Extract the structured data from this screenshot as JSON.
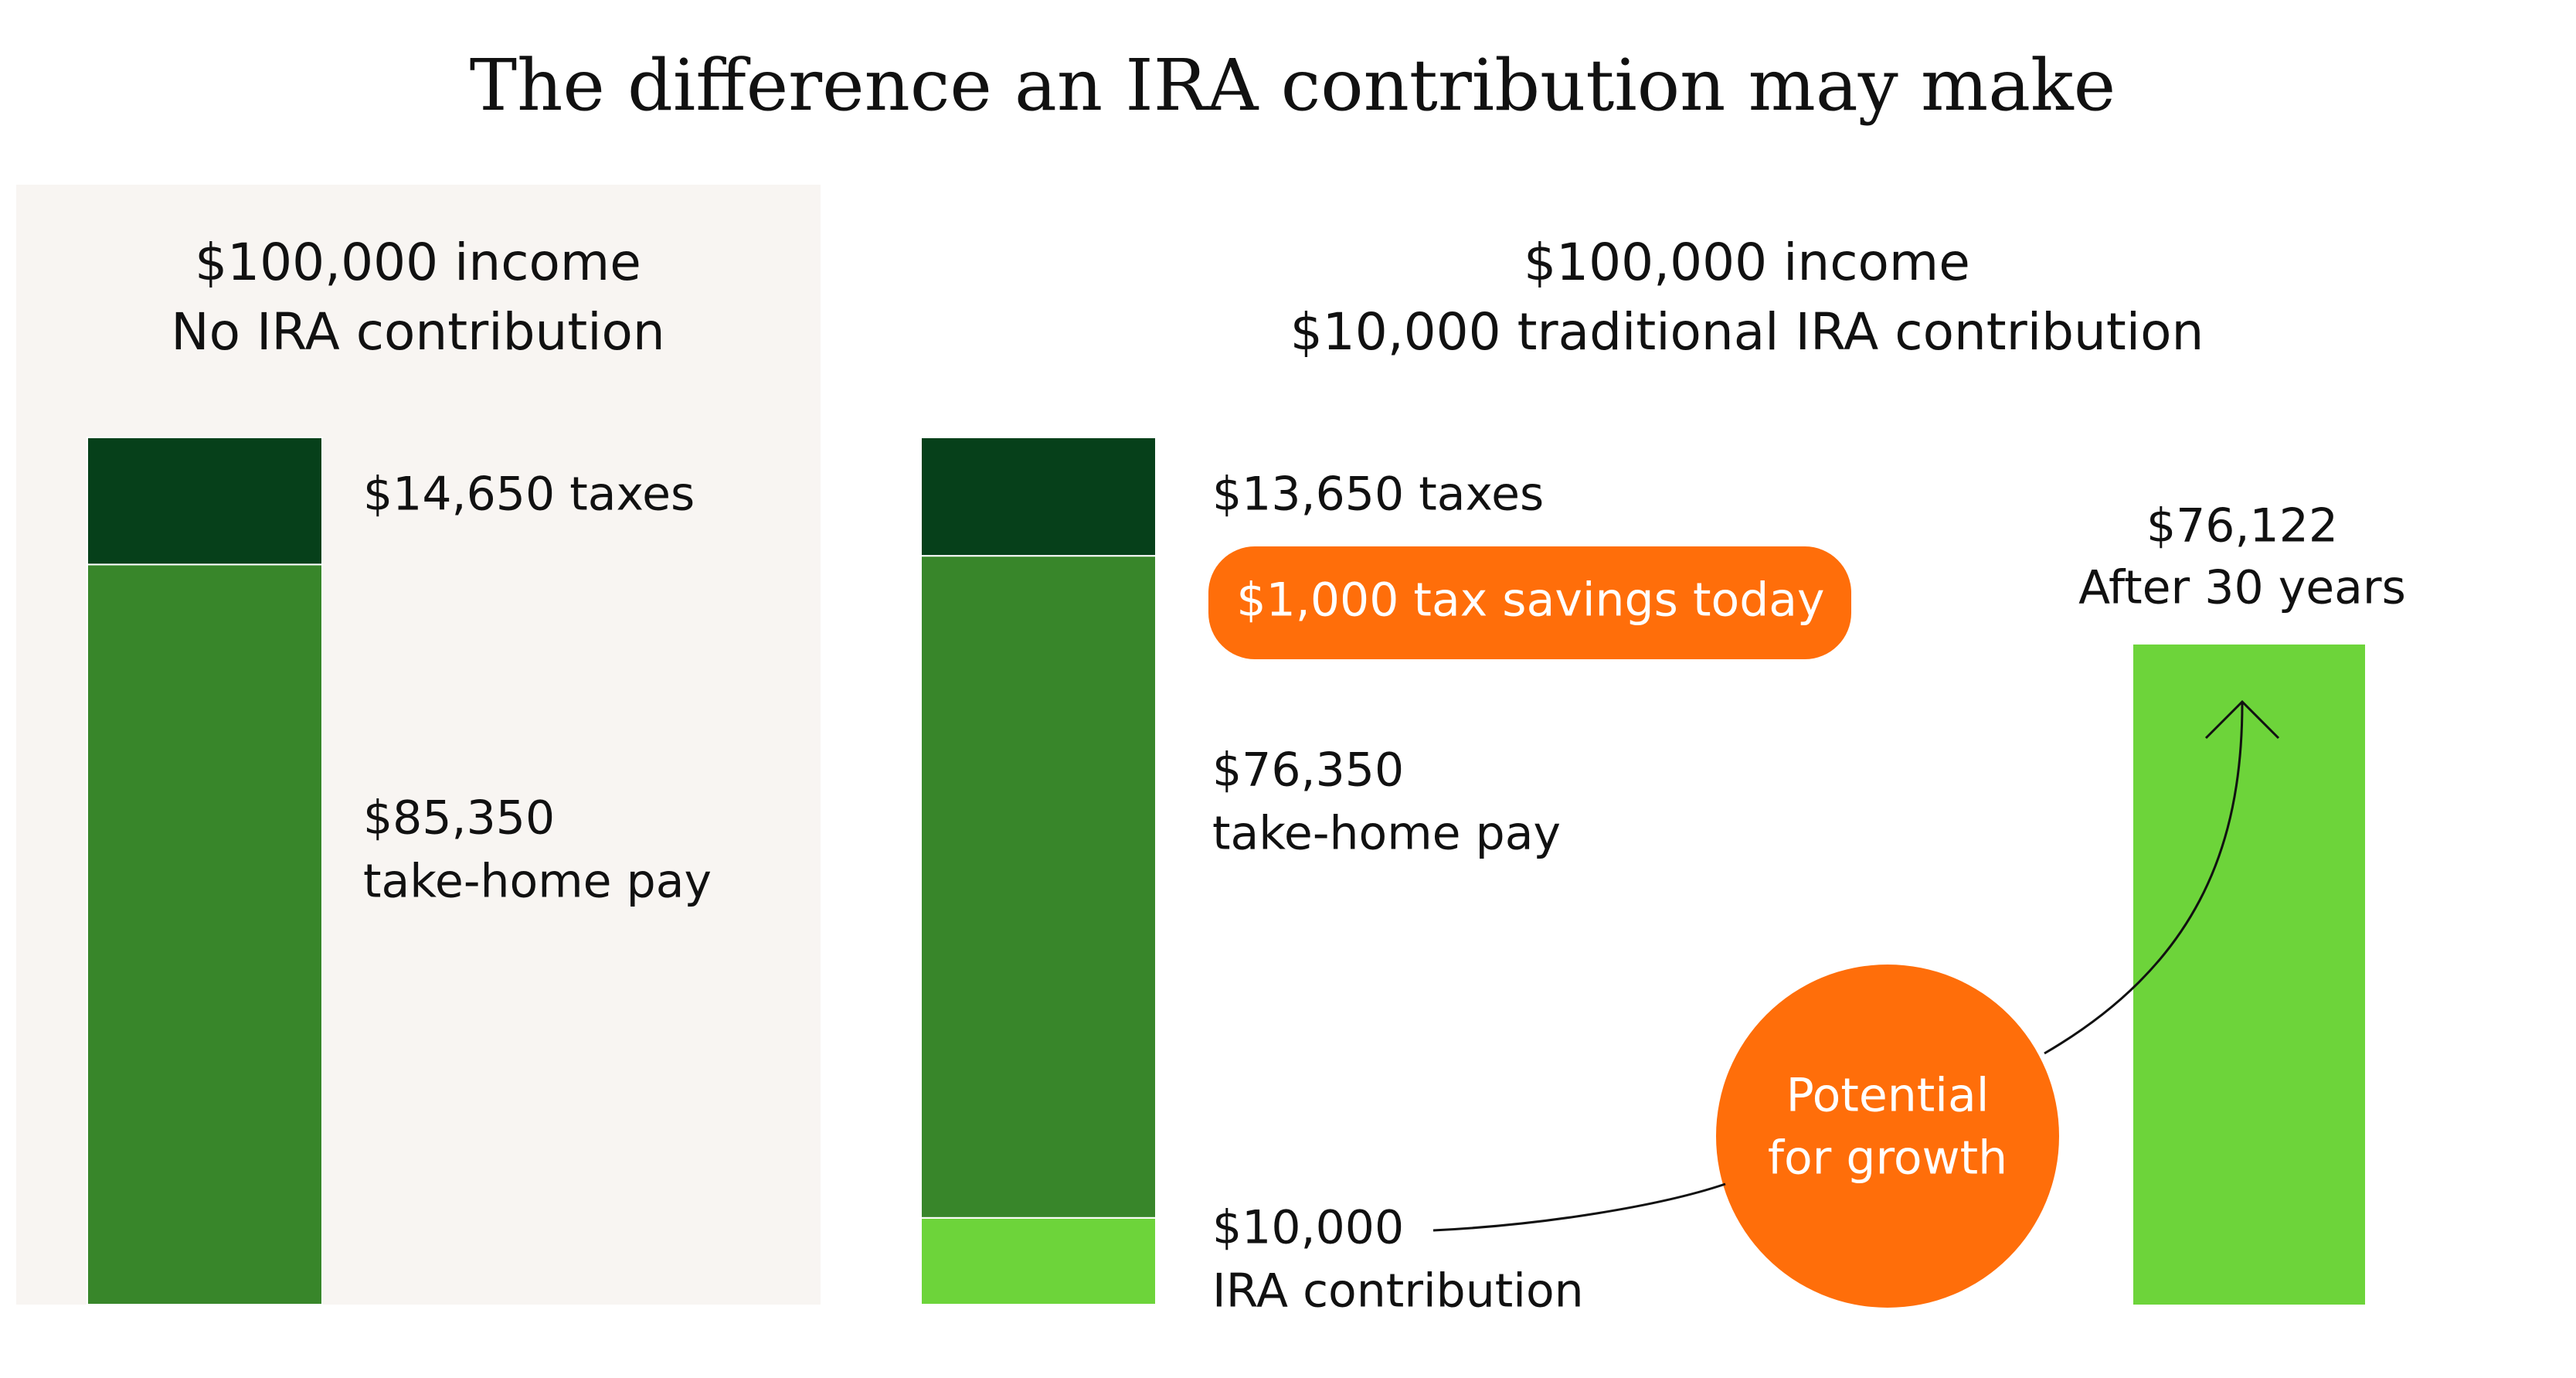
{
  "chart_data": {
    "type": "stacked-bar",
    "title": "The difference an IRA contribution may make",
    "panels": [
      {
        "subtitle_lines": [
          "$100,000 income",
          "No IRA contribution"
        ],
        "segments": [
          {
            "value": 85350,
            "label_lines": [
              "$85,350",
              "take-home pay"
            ],
            "color": "#38862a"
          },
          {
            "value": 14650,
            "label_lines": [
              "$14,650 taxes"
            ],
            "color": "#06401a"
          }
        ]
      },
      {
        "subtitle_lines": [
          "$100,000 income",
          "$10,000 traditional IRA contribution"
        ],
        "segments": [
          {
            "value": 10000,
            "label_lines": [
              "$10,000",
              "IRA contribution"
            ],
            "color": "#6dd43a"
          },
          {
            "value": 76350,
            "label_lines": [
              "$76,350",
              "take-home pay"
            ],
            "color": "#38862a"
          },
          {
            "value": 13650,
            "label_lines": [
              "$13,650 taxes"
            ],
            "color": "#06401a"
          }
        ],
        "callout": "$1,000 tax savings today",
        "growth": {
          "value": 76122,
          "label_lines": [
            "$76,122",
            "After 30 years"
          ],
          "color": "#6dd43a",
          "badge_lines": [
            "Potential",
            "for growth"
          ]
        }
      }
    ]
  }
}
